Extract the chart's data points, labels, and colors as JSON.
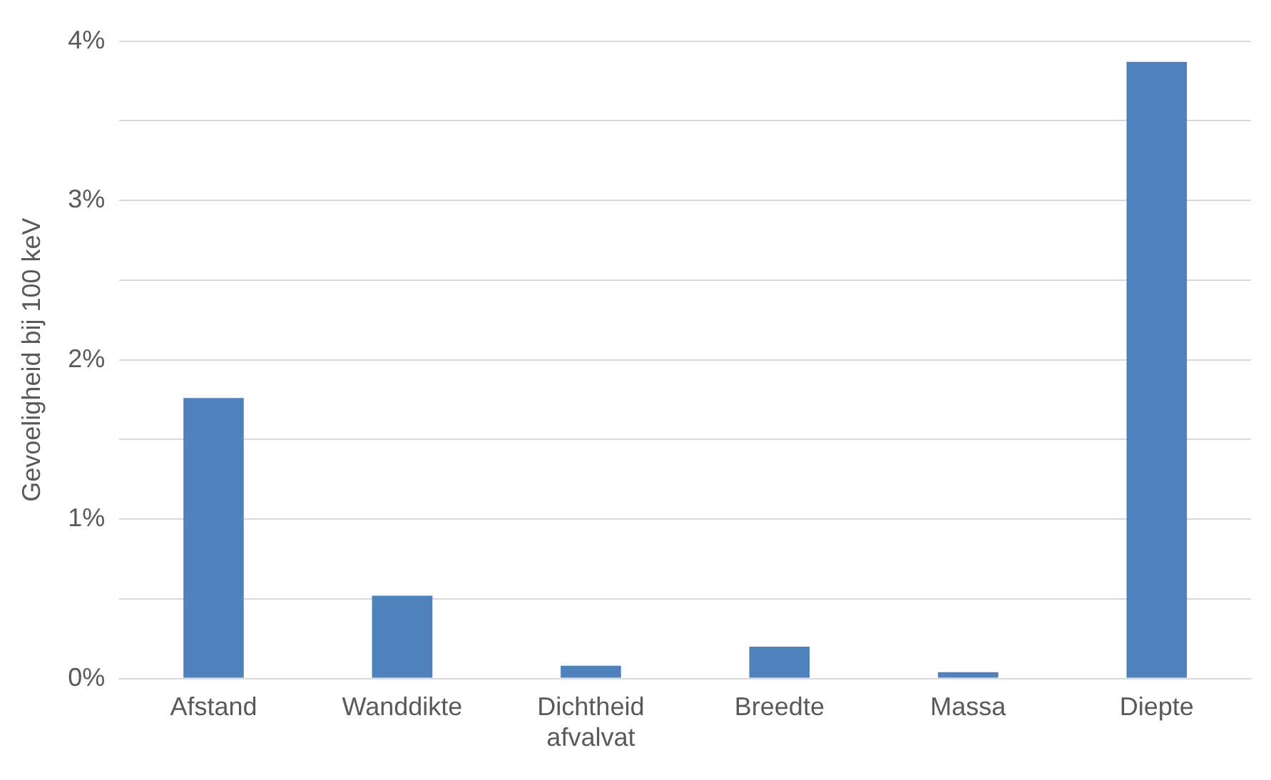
{
  "chart_data": {
    "type": "bar",
    "ylabel": "Gevoeligheid bij 100 keV",
    "categories": [
      "Afstand",
      "Wanddikte",
      "Dichtheid afvalvat",
      "Breedte",
      "Massa",
      "Diepte"
    ],
    "values": [
      1.76,
      0.52,
      0.08,
      0.2,
      0.04,
      3.87
    ],
    "color": "#4f81bd",
    "ylim": [
      0,
      4
    ],
    "yticks": [
      {
        "value": 0,
        "label": "0%"
      },
      {
        "value": 0.5,
        "label": null
      },
      {
        "value": 1,
        "label": "1%"
      },
      {
        "value": 1.5,
        "label": null
      },
      {
        "value": 2,
        "label": "2%"
      },
      {
        "value": 2.5,
        "label": null
      },
      {
        "value": 3,
        "label": "3%"
      },
      {
        "value": 3.5,
        "label": null
      },
      {
        "value": 4,
        "label": "4%"
      }
    ],
    "grid": "y",
    "legend": false
  }
}
